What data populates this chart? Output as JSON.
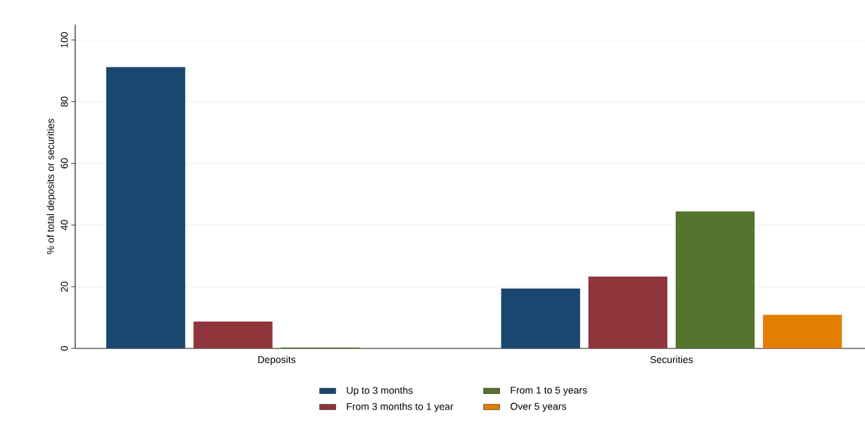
{
  "chart_data": {
    "type": "bar",
    "ylabel": "% of total deposits or securities",
    "categories": [
      "Deposits",
      "Securities"
    ],
    "series": [
      {
        "name": "Up to 3 months",
        "color": "#1a476f",
        "values": [
          91.2,
          19.4
        ]
      },
      {
        "name": "From 3 months to 1 year",
        "color": "#90353b",
        "values": [
          8.7,
          23.3
        ]
      },
      {
        "name": "From 1 to 5 years",
        "color": "#55752f",
        "values": [
          0.3,
          44.4
        ]
      },
      {
        "name": "Over 5 years",
        "color": "#e37e00",
        "values": [
          null,
          10.9
        ]
      }
    ],
    "ylim": [
      0,
      105
    ],
    "yticks": [
      0,
      20,
      40,
      60,
      80,
      100
    ],
    "grid": "y",
    "legend": "bottom"
  }
}
